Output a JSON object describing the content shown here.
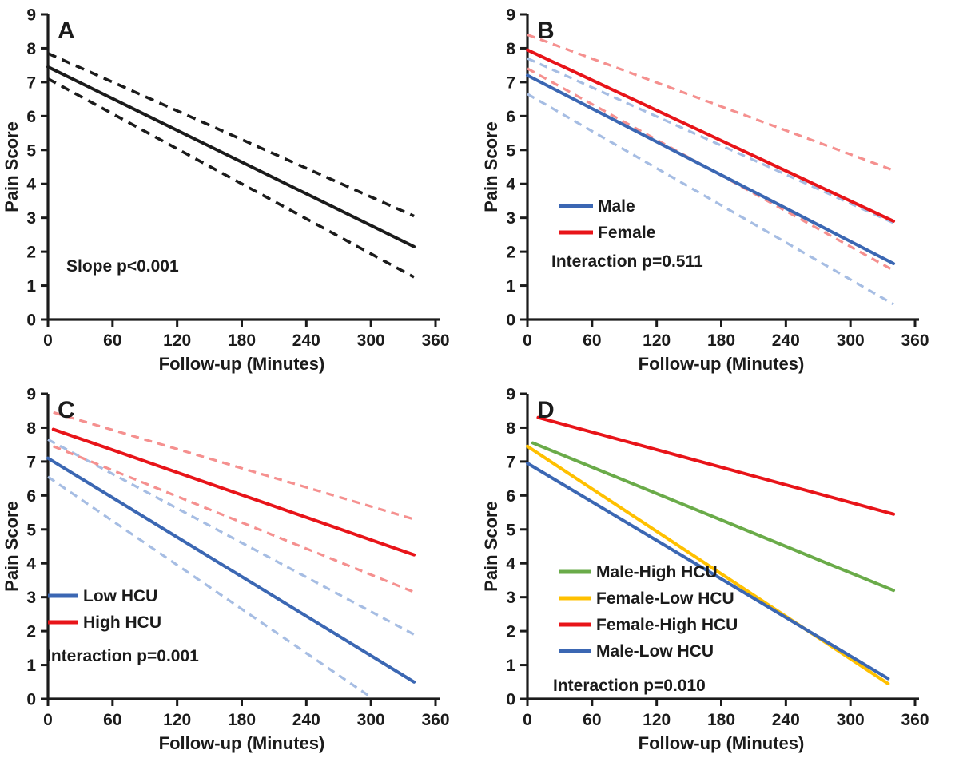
{
  "figure": {
    "background": "#ffffff",
    "axis_color": "#1b1b1b",
    "xlabel": "Follow-up (Minutes)",
    "ylabel": "Pain Score"
  },
  "chart_data": [
    {
      "type": "line",
      "panel_label": "A",
      "xlabel": "Follow-up (Minutes)",
      "ylabel": "Pain Score",
      "xlim": [
        0,
        360
      ],
      "ylim": [
        0,
        9
      ],
      "xticks": [
        0,
        60,
        120,
        180,
        240,
        300,
        360
      ],
      "yticks": [
        0,
        1,
        2,
        3,
        4,
        5,
        6,
        7,
        8,
        9
      ],
      "grid": false,
      "annotation": {
        "text": "Slope p<0.001",
        "x": 83,
        "y": 340
      },
      "legend": null,
      "series": [
        {
          "name": "overall-upper-ci",
          "color": "#1b1b1b",
          "dashed": true,
          "width": 3.6,
          "points": [
            [
              0,
              7.85
            ],
            [
              340,
              3.05
            ]
          ]
        },
        {
          "name": "overall-lower-ci",
          "color": "#1b1b1b",
          "dashed": true,
          "width": 3.6,
          "points": [
            [
              0,
              7.1
            ],
            [
              340,
              1.25
            ]
          ]
        },
        {
          "name": "overall-mean",
          "color": "#1b1b1b",
          "dashed": false,
          "width": 4.0,
          "points": [
            [
              0,
              7.45
            ],
            [
              340,
              2.15
            ]
          ]
        }
      ]
    },
    {
      "type": "line",
      "panel_label": "B",
      "xlabel": "Follow-up (Minutes)",
      "ylabel": "Pain Score",
      "xlim": [
        0,
        360
      ],
      "ylim": [
        0,
        9
      ],
      "xticks": [
        0,
        60,
        120,
        180,
        240,
        300,
        360
      ],
      "yticks": [
        0,
        1,
        2,
        3,
        4,
        5,
        6,
        7,
        8,
        9
      ],
      "grid": false,
      "annotation": {
        "text": "Interaction p=0.511",
        "x": 90,
        "y": 334
      },
      "legend": {
        "x": 100,
        "len": 42,
        "label_x": 148,
        "rows": [
          265,
          298
        ],
        "entries": [
          {
            "label": "Male",
            "color": "#3B67B3"
          },
          {
            "label": "Female",
            "color": "#E81419"
          }
        ]
      },
      "series": [
        {
          "name": "male-upper-ci",
          "color": "#A6BDE3",
          "dashed": true,
          "width": 3.2,
          "points": [
            [
              0,
              7.7
            ],
            [
              340,
              2.85
            ]
          ]
        },
        {
          "name": "male-lower-ci",
          "color": "#A6BDE3",
          "dashed": true,
          "width": 3.2,
          "points": [
            [
              0,
              6.65
            ],
            [
              340,
              0.45
            ]
          ]
        },
        {
          "name": "female-upper-ci",
          "color": "#F5908F",
          "dashed": true,
          "width": 3.2,
          "points": [
            [
              0,
              8.4
            ],
            [
              340,
              4.4
            ]
          ]
        },
        {
          "name": "female-lower-ci",
          "color": "#F5908F",
          "dashed": true,
          "width": 3.2,
          "points": [
            [
              0,
              7.4
            ],
            [
              340,
              1.45
            ]
          ]
        },
        {
          "name": "male",
          "color": "#3B67B3",
          "dashed": false,
          "width": 4.0,
          "points": [
            [
              0,
              7.2
            ],
            [
              340,
              1.65
            ]
          ]
        },
        {
          "name": "female",
          "color": "#E81419",
          "dashed": false,
          "width": 4.0,
          "points": [
            [
              0,
              7.95
            ],
            [
              340,
              2.9
            ]
          ]
        }
      ]
    },
    {
      "type": "line",
      "panel_label": "C",
      "xlabel": "Follow-up (Minutes)",
      "ylabel": "Pain Score",
      "xlim": [
        0,
        360
      ],
      "ylim": [
        0,
        9
      ],
      "xticks": [
        0,
        60,
        120,
        180,
        240,
        300,
        360
      ],
      "yticks": [
        0,
        1,
        2,
        3,
        4,
        5,
        6,
        7,
        8,
        9
      ],
      "grid": false,
      "annotation": {
        "text": "Interaction p=0.001",
        "x": 58,
        "y": 353
      },
      "legend": {
        "x": 60,
        "len": 38,
        "label_x": 104,
        "rows": [
          278,
          311
        ],
        "entries": [
          {
            "label": "Low HCU",
            "color": "#3B67B3"
          },
          {
            "label": "High HCU",
            "color": "#E81419"
          }
        ]
      },
      "series": [
        {
          "name": "low-hcu-upper-ci",
          "color": "#A6BDE3",
          "dashed": true,
          "width": 3.2,
          "points": [
            [
              0,
              7.65
            ],
            [
              340,
              1.9
            ]
          ]
        },
        {
          "name": "low-hcu-lower-ci",
          "color": "#A6BDE3",
          "dashed": true,
          "width": 3.2,
          "points": [
            [
              0,
              6.55
            ],
            [
              300,
              0.05
            ]
          ]
        },
        {
          "name": "high-hcu-upper-ci",
          "color": "#F5908F",
          "dashed": true,
          "width": 3.2,
          "points": [
            [
              5,
              8.45
            ],
            [
              340,
              5.3
            ]
          ]
        },
        {
          "name": "high-hcu-lower-ci",
          "color": "#F5908F",
          "dashed": true,
          "width": 3.2,
          "points": [
            [
              5,
              7.45
            ],
            [
              340,
              3.15
            ]
          ]
        },
        {
          "name": "low-hcu",
          "color": "#3B67B3",
          "dashed": false,
          "width": 4.0,
          "points": [
            [
              0,
              7.1
            ],
            [
              340,
              0.5
            ]
          ]
        },
        {
          "name": "high-hcu",
          "color": "#E81419",
          "dashed": false,
          "width": 4.0,
          "points": [
            [
              5,
              7.95
            ],
            [
              340,
              4.25
            ]
          ]
        }
      ]
    },
    {
      "type": "line",
      "panel_label": "D",
      "xlabel": "Follow-up (Minutes)",
      "ylabel": "Pain Score",
      "xlim": [
        0,
        360
      ],
      "ylim": [
        0,
        9
      ],
      "xticks": [
        0,
        60,
        120,
        180,
        240,
        300,
        360
      ],
      "yticks": [
        0,
        1,
        2,
        3,
        4,
        5,
        6,
        7,
        8,
        9
      ],
      "grid": false,
      "annotation": {
        "text": "Interaction p=0.010",
        "x": 92,
        "y": 390
      },
      "legend": {
        "x": 100,
        "len": 40,
        "label_x": 146,
        "rows": [
          248,
          281,
          314,
          347
        ],
        "entries": [
          {
            "label": "Male-High HCU",
            "color": "#6AAB49"
          },
          {
            "label": "Female-Low HCU",
            "color": "#FFC000"
          },
          {
            "label": "Female-High HCU",
            "color": "#E81419"
          },
          {
            "label": "Male-Low HCU",
            "color": "#3B67B3"
          }
        ]
      },
      "series": [
        {
          "name": "male-high-hcu",
          "color": "#6AAB49",
          "dashed": false,
          "width": 4.0,
          "points": [
            [
              5,
              7.55
            ],
            [
              340,
              3.2
            ]
          ]
        },
        {
          "name": "female-low-hcu",
          "color": "#FFC000",
          "dashed": false,
          "width": 4.0,
          "points": [
            [
              0,
              7.45
            ],
            [
              335,
              0.45
            ]
          ]
        },
        {
          "name": "female-high-hcu",
          "color": "#E81419",
          "dashed": false,
          "width": 4.0,
          "points": [
            [
              10,
              8.3
            ],
            [
              340,
              5.45
            ]
          ]
        },
        {
          "name": "male-low-hcu",
          "color": "#3B67B3",
          "dashed": false,
          "width": 4.0,
          "points": [
            [
              0,
              6.95
            ],
            [
              335,
              0.6
            ]
          ]
        }
      ]
    }
  ]
}
